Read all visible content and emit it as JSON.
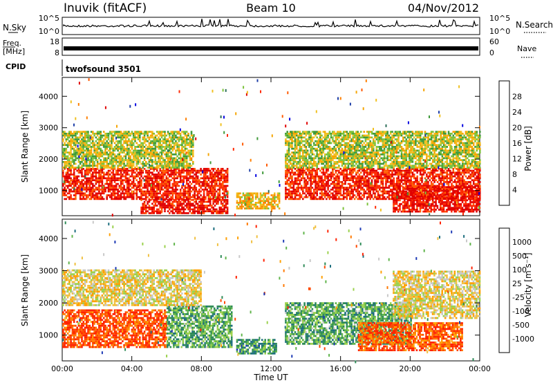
{
  "header": {
    "station": "Inuvik (fitACF)",
    "beam": "Beam 10",
    "date": "04/Nov/2012"
  },
  "strips": {
    "nsky_label": "N.Sky",
    "nsky_ticks": [
      "10^5",
      "10^0"
    ],
    "nsearch_label": "N.Search",
    "nsearch_ticks": [
      "10^5",
      "10^0"
    ],
    "freq_label_1": "Freq.",
    "freq_label_2": "[MHz]",
    "freq_ticks": [
      "18",
      "8"
    ],
    "nave_label": "Nave",
    "nave_ticks": [
      "60",
      "0"
    ],
    "cpid_label": "CPID",
    "cpid_value": "twofsound 3501"
  },
  "power_colorbar": {
    "label": "Power [dB]",
    "ticks": [
      "28",
      "24",
      "20",
      "16",
      "12",
      "8",
      "4"
    ],
    "colors": [
      "#0000e0",
      "#1f3fa8",
      "#2e6f5a",
      "#3f9a3a",
      "#7cc23a",
      "#f0c020",
      "#f5a500",
      "#ff8000",
      "#ff5a00",
      "#ff2800",
      "#e00000"
    ]
  },
  "velocity_colorbar": {
    "label": "Velocity [m s⁻¹]",
    "ticks": [
      "1000",
      "500",
      "100",
      "25",
      "-25",
      "-100",
      "-500",
      "-1000"
    ],
    "colors": [
      "#1c39b5",
      "#1f6f7f",
      "#2e8b57",
      "#5fb44a",
      "#9bd14d",
      "#c8c8c8",
      "#f0c040",
      "#ffa000",
      "#ff7a00",
      "#ff4a00",
      "#ff2200"
    ]
  },
  "chart_data": [
    {
      "type": "heatmap",
      "name": "",
      "ylabel": "Slant Range [km]",
      "ylim": [
        200,
        4600
      ],
      "yticks": [
        1000,
        2000,
        3000,
        4000
      ],
      "xlim": [
        0,
        24
      ],
      "xlabel": "",
      "regions": [
        {
          "t": [
            0,
            9.5
          ],
          "r": [
            700,
            1700
          ],
          "level": 0.9
        },
        {
          "t": [
            0,
            7.5
          ],
          "r": [
            1700,
            2900
          ],
          "level": 0.45
        },
        {
          "t": [
            4.5,
            9.5
          ],
          "r": [
            250,
            700
          ],
          "level": 0.95
        },
        {
          "t": [
            10,
            12.5
          ],
          "r": [
            400,
            900
          ],
          "level": 0.55
        },
        {
          "t": [
            12.8,
            24
          ],
          "r": [
            700,
            1700
          ],
          "level": 0.9
        },
        {
          "t": [
            12.8,
            24
          ],
          "r": [
            1700,
            2900
          ],
          "level": 0.45
        },
        {
          "t": [
            19,
            24
          ],
          "r": [
            300,
            1100
          ],
          "level": 0.95
        }
      ]
    },
    {
      "type": "heatmap",
      "name": "",
      "ylabel": "Slant Range [km]",
      "ylim": [
        200,
        4600
      ],
      "yticks": [
        1000,
        2000,
        3000,
        4000
      ],
      "xlim": [
        0,
        24
      ],
      "xticks": [
        "00:00",
        "04:00",
        "08:00",
        "12:00",
        "16:00",
        "20:00",
        "00:00"
      ],
      "xlabel": "Time UT",
      "regions": [
        {
          "t": [
            0,
            6
          ],
          "r": [
            600,
            1800
          ],
          "level": 0.88
        },
        {
          "t": [
            6,
            9.7
          ],
          "r": [
            600,
            1900
          ],
          "level": 0.3
        },
        {
          "t": [
            0,
            8
          ],
          "r": [
            1900,
            3000
          ],
          "level": 0.55
        },
        {
          "t": [
            10,
            12.3
          ],
          "r": [
            400,
            850
          ],
          "level": 0.25
        },
        {
          "t": [
            12.8,
            20
          ],
          "r": [
            700,
            2000
          ],
          "level": 0.3
        },
        {
          "t": [
            17,
            23
          ],
          "r": [
            500,
            1400
          ],
          "level": 0.85
        },
        {
          "t": [
            19,
            24
          ],
          "r": [
            1500,
            3000
          ],
          "level": 0.55
        }
      ]
    }
  ]
}
